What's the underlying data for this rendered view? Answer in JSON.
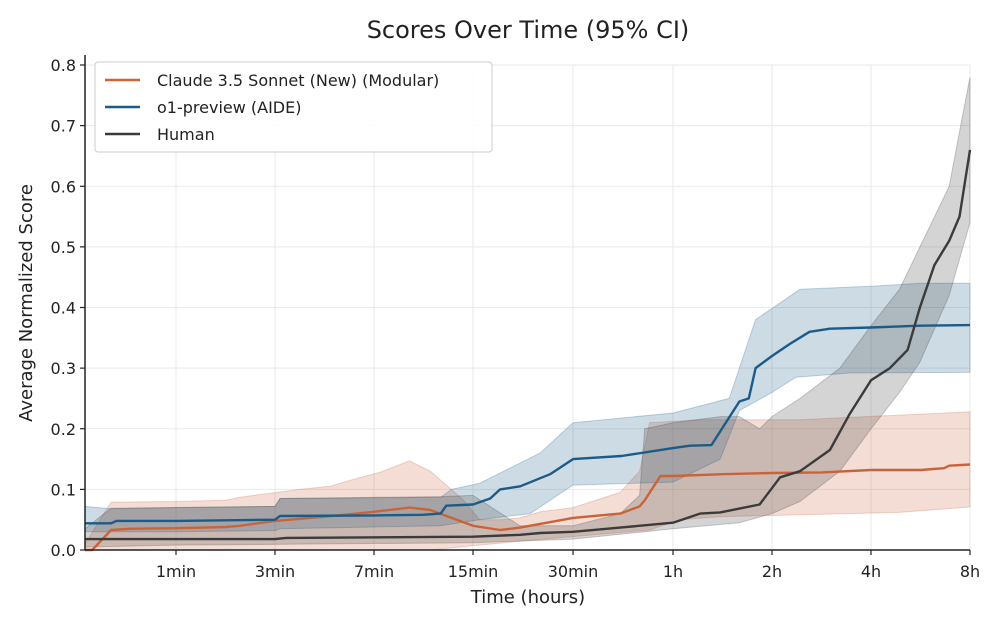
{
  "chart_data": {
    "type": "line",
    "title": "Scores Over Time (95% CI)",
    "xlabel": "Time (hours)",
    "ylabel": "Average Normalized Score",
    "x_unit": "minutes",
    "x_scale": "log",
    "xlim": [
      0.4,
      480
    ],
    "ylim": [
      0,
      0.8
    ],
    "grid": true,
    "legend_position": "top-left",
    "x_ticks": [
      {
        "value": 1,
        "label": "1min"
      },
      {
        "value": 3,
        "label": "3min"
      },
      {
        "value": 7,
        "label": "7min"
      },
      {
        "value": 15,
        "label": "15min"
      },
      {
        "value": 30,
        "label": "30min"
      },
      {
        "value": 60,
        "label": "1h"
      },
      {
        "value": 120,
        "label": "2h"
      },
      {
        "value": 240,
        "label": "4h"
      },
      {
        "value": 480,
        "label": "8h"
      }
    ],
    "y_ticks": [
      {
        "value": 0,
        "label": "0.0"
      },
      {
        "value": 0.1,
        "label": "0.1"
      },
      {
        "value": 0.2,
        "label": "0.2"
      },
      {
        "value": 0.3,
        "label": "0.3"
      },
      {
        "value": 0.4,
        "label": "0.4"
      },
      {
        "value": 0.5,
        "label": "0.5"
      },
      {
        "value": 0.6,
        "label": "0.6"
      },
      {
        "value": 0.7,
        "label": "0.7"
      },
      {
        "value": 0.8,
        "label": "0.8"
      }
    ],
    "series": [
      {
        "name": "Claude 3.5 Sonnet (New) (Modular)",
        "color": "#c9643a",
        "mean": [
          [
            0.4,
            0
          ],
          [
            0.43,
            0
          ],
          [
            0.52,
            0.033
          ],
          [
            0.63,
            0.035
          ],
          [
            1,
            0.036
          ],
          [
            1.73,
            0.038
          ],
          [
            2.03,
            0.04
          ],
          [
            3,
            0.048
          ],
          [
            4.6,
            0.055
          ],
          [
            7,
            0.063
          ],
          [
            9.2,
            0.07
          ],
          [
            10.8,
            0.066
          ],
          [
            15,
            0.04
          ],
          [
            18.1,
            0.033
          ],
          [
            20.8,
            0.037
          ],
          [
            30,
            0.053
          ],
          [
            41.6,
            0.06
          ],
          [
            47.6,
            0.072
          ],
          [
            49.3,
            0.082
          ],
          [
            55,
            0.122
          ],
          [
            60,
            0.122
          ],
          [
            85,
            0.125
          ],
          [
            120,
            0.127
          ],
          [
            170,
            0.128
          ],
          [
            240,
            0.132
          ],
          [
            340,
            0.132
          ],
          [
            400,
            0.135
          ],
          [
            415,
            0.139
          ],
          [
            480,
            0.141
          ]
        ],
        "ci_upper": [
          [
            0.4,
            0.01
          ],
          [
            0.52,
            0.079
          ],
          [
            1,
            0.08
          ],
          [
            1.73,
            0.082
          ],
          [
            2.03,
            0.087
          ],
          [
            3.7,
            0.1
          ],
          [
            4.8,
            0.105
          ],
          [
            5.7,
            0.115
          ],
          [
            7.3,
            0.128
          ],
          [
            9.2,
            0.147
          ],
          [
            10.8,
            0.13
          ],
          [
            13.9,
            0.083
          ],
          [
            15.7,
            0.05
          ],
          [
            18.1,
            0.05
          ],
          [
            20.8,
            0.053
          ],
          [
            23.9,
            0.063
          ],
          [
            30,
            0.07
          ],
          [
            41.6,
            0.095
          ],
          [
            47.6,
            0.13
          ],
          [
            51,
            0.21
          ],
          [
            72.5,
            0.215
          ],
          [
            146,
            0.215
          ],
          [
            480,
            0.228
          ]
        ],
        "ci_lower": [
          [
            0.4,
            0
          ],
          [
            10.8,
            0
          ],
          [
            15.7,
            0.008
          ],
          [
            22.3,
            0.016
          ],
          [
            36,
            0.026
          ],
          [
            51,
            0.033
          ],
          [
            63,
            0.05
          ],
          [
            83.5,
            0.055
          ],
          [
            146,
            0.058
          ],
          [
            293,
            0.062
          ],
          [
            480,
            0.071
          ]
        ]
      },
      {
        "name": "o1-preview (AIDE)",
        "color": "#1c5b87",
        "mean": [
          [
            0.4,
            0.044
          ],
          [
            0.52,
            0.044
          ],
          [
            0.55,
            0.048
          ],
          [
            1,
            0.048
          ],
          [
            3,
            0.05
          ],
          [
            3.13,
            0.056
          ],
          [
            7,
            0.057
          ],
          [
            10.2,
            0.058
          ],
          [
            11.7,
            0.06
          ],
          [
            12.2,
            0.073
          ],
          [
            15,
            0.075
          ],
          [
            16.9,
            0.085
          ],
          [
            18.1,
            0.1
          ],
          [
            20.8,
            0.105
          ],
          [
            25.6,
            0.125
          ],
          [
            30,
            0.15
          ],
          [
            42,
            0.155
          ],
          [
            60,
            0.168
          ],
          [
            67.5,
            0.172
          ],
          [
            78.5,
            0.173
          ],
          [
            95.5,
            0.245
          ],
          [
            102,
            0.25
          ],
          [
            107,
            0.3
          ],
          [
            120,
            0.32
          ],
          [
            136,
            0.34
          ],
          [
            156,
            0.36
          ],
          [
            180,
            0.365
          ],
          [
            240,
            0.367
          ],
          [
            338,
            0.37
          ],
          [
            480,
            0.371
          ]
        ],
        "ci_upper": [
          [
            0.4,
            0.072
          ],
          [
            0.52,
            0.068
          ],
          [
            1,
            0.07
          ],
          [
            3,
            0.072
          ],
          [
            3.13,
            0.085
          ],
          [
            11.7,
            0.087
          ],
          [
            12.7,
            0.1
          ],
          [
            15.7,
            0.11
          ],
          [
            23.9,
            0.16
          ],
          [
            30,
            0.21
          ],
          [
            60,
            0.226
          ],
          [
            89,
            0.25
          ],
          [
            107,
            0.38
          ],
          [
            146,
            0.43
          ],
          [
            240,
            0.435
          ],
          [
            338,
            0.44
          ],
          [
            480,
            0.44
          ]
        ],
        "ci_lower": [
          [
            0.4,
            0.03
          ],
          [
            1,
            0.03
          ],
          [
            3,
            0.032
          ],
          [
            3.13,
            0.035
          ],
          [
            11.7,
            0.04
          ],
          [
            15.7,
            0.05
          ],
          [
            22.3,
            0.06
          ],
          [
            30,
            0.107
          ],
          [
            60,
            0.112
          ],
          [
            83.5,
            0.15
          ],
          [
            95.5,
            0.23
          ],
          [
            120,
            0.26
          ],
          [
            142,
            0.285
          ],
          [
            207,
            0.292
          ],
          [
            480,
            0.293
          ]
        ]
      },
      {
        "name": "Human",
        "color": "#3b3b3b",
        "mean": [
          [
            0.4,
            0.018
          ],
          [
            3,
            0.018
          ],
          [
            3.3,
            0.02
          ],
          [
            15,
            0.022
          ],
          [
            20.8,
            0.025
          ],
          [
            23.9,
            0.028
          ],
          [
            30,
            0.03
          ],
          [
            41.6,
            0.037
          ],
          [
            60,
            0.045
          ],
          [
            72.5,
            0.06
          ],
          [
            83.5,
            0.062
          ],
          [
            110,
            0.075
          ],
          [
            127,
            0.12
          ],
          [
            146,
            0.13
          ],
          [
            180,
            0.165
          ],
          [
            207,
            0.225
          ],
          [
            240,
            0.28
          ],
          [
            274,
            0.3
          ],
          [
            310,
            0.33
          ],
          [
            338,
            0.4
          ],
          [
            374,
            0.47
          ],
          [
            415,
            0.51
          ],
          [
            446,
            0.55
          ],
          [
            480,
            0.66
          ]
        ],
        "ci_upper": [
          [
            0.4,
            0.035
          ],
          [
            0.52,
            0.069
          ],
          [
            3,
            0.072
          ],
          [
            3.13,
            0.085
          ],
          [
            11.7,
            0.088
          ],
          [
            15,
            0.09
          ],
          [
            20.8,
            0.04
          ],
          [
            30,
            0.04
          ],
          [
            41.6,
            0.06
          ],
          [
            47.6,
            0.09
          ],
          [
            49.3,
            0.2
          ],
          [
            60,
            0.21
          ],
          [
            83.5,
            0.22
          ],
          [
            95.5,
            0.22
          ],
          [
            110,
            0.2
          ],
          [
            120,
            0.22
          ],
          [
            146,
            0.25
          ],
          [
            193,
            0.3
          ],
          [
            240,
            0.37
          ],
          [
            293,
            0.43
          ],
          [
            338,
            0.5
          ],
          [
            415,
            0.6
          ],
          [
            446,
            0.69
          ],
          [
            480,
            0.78
          ]
        ],
        "ci_lower": [
          [
            0.4,
            0.005
          ],
          [
            1,
            0.008
          ],
          [
            15,
            0.012
          ],
          [
            30,
            0.018
          ],
          [
            60,
            0.035
          ],
          [
            95.5,
            0.045
          ],
          [
            120,
            0.06
          ],
          [
            146,
            0.08
          ],
          [
            193,
            0.13
          ],
          [
            240,
            0.2
          ],
          [
            293,
            0.26
          ],
          [
            338,
            0.31
          ],
          [
            415,
            0.42
          ],
          [
            480,
            0.54
          ]
        ]
      }
    ]
  }
}
